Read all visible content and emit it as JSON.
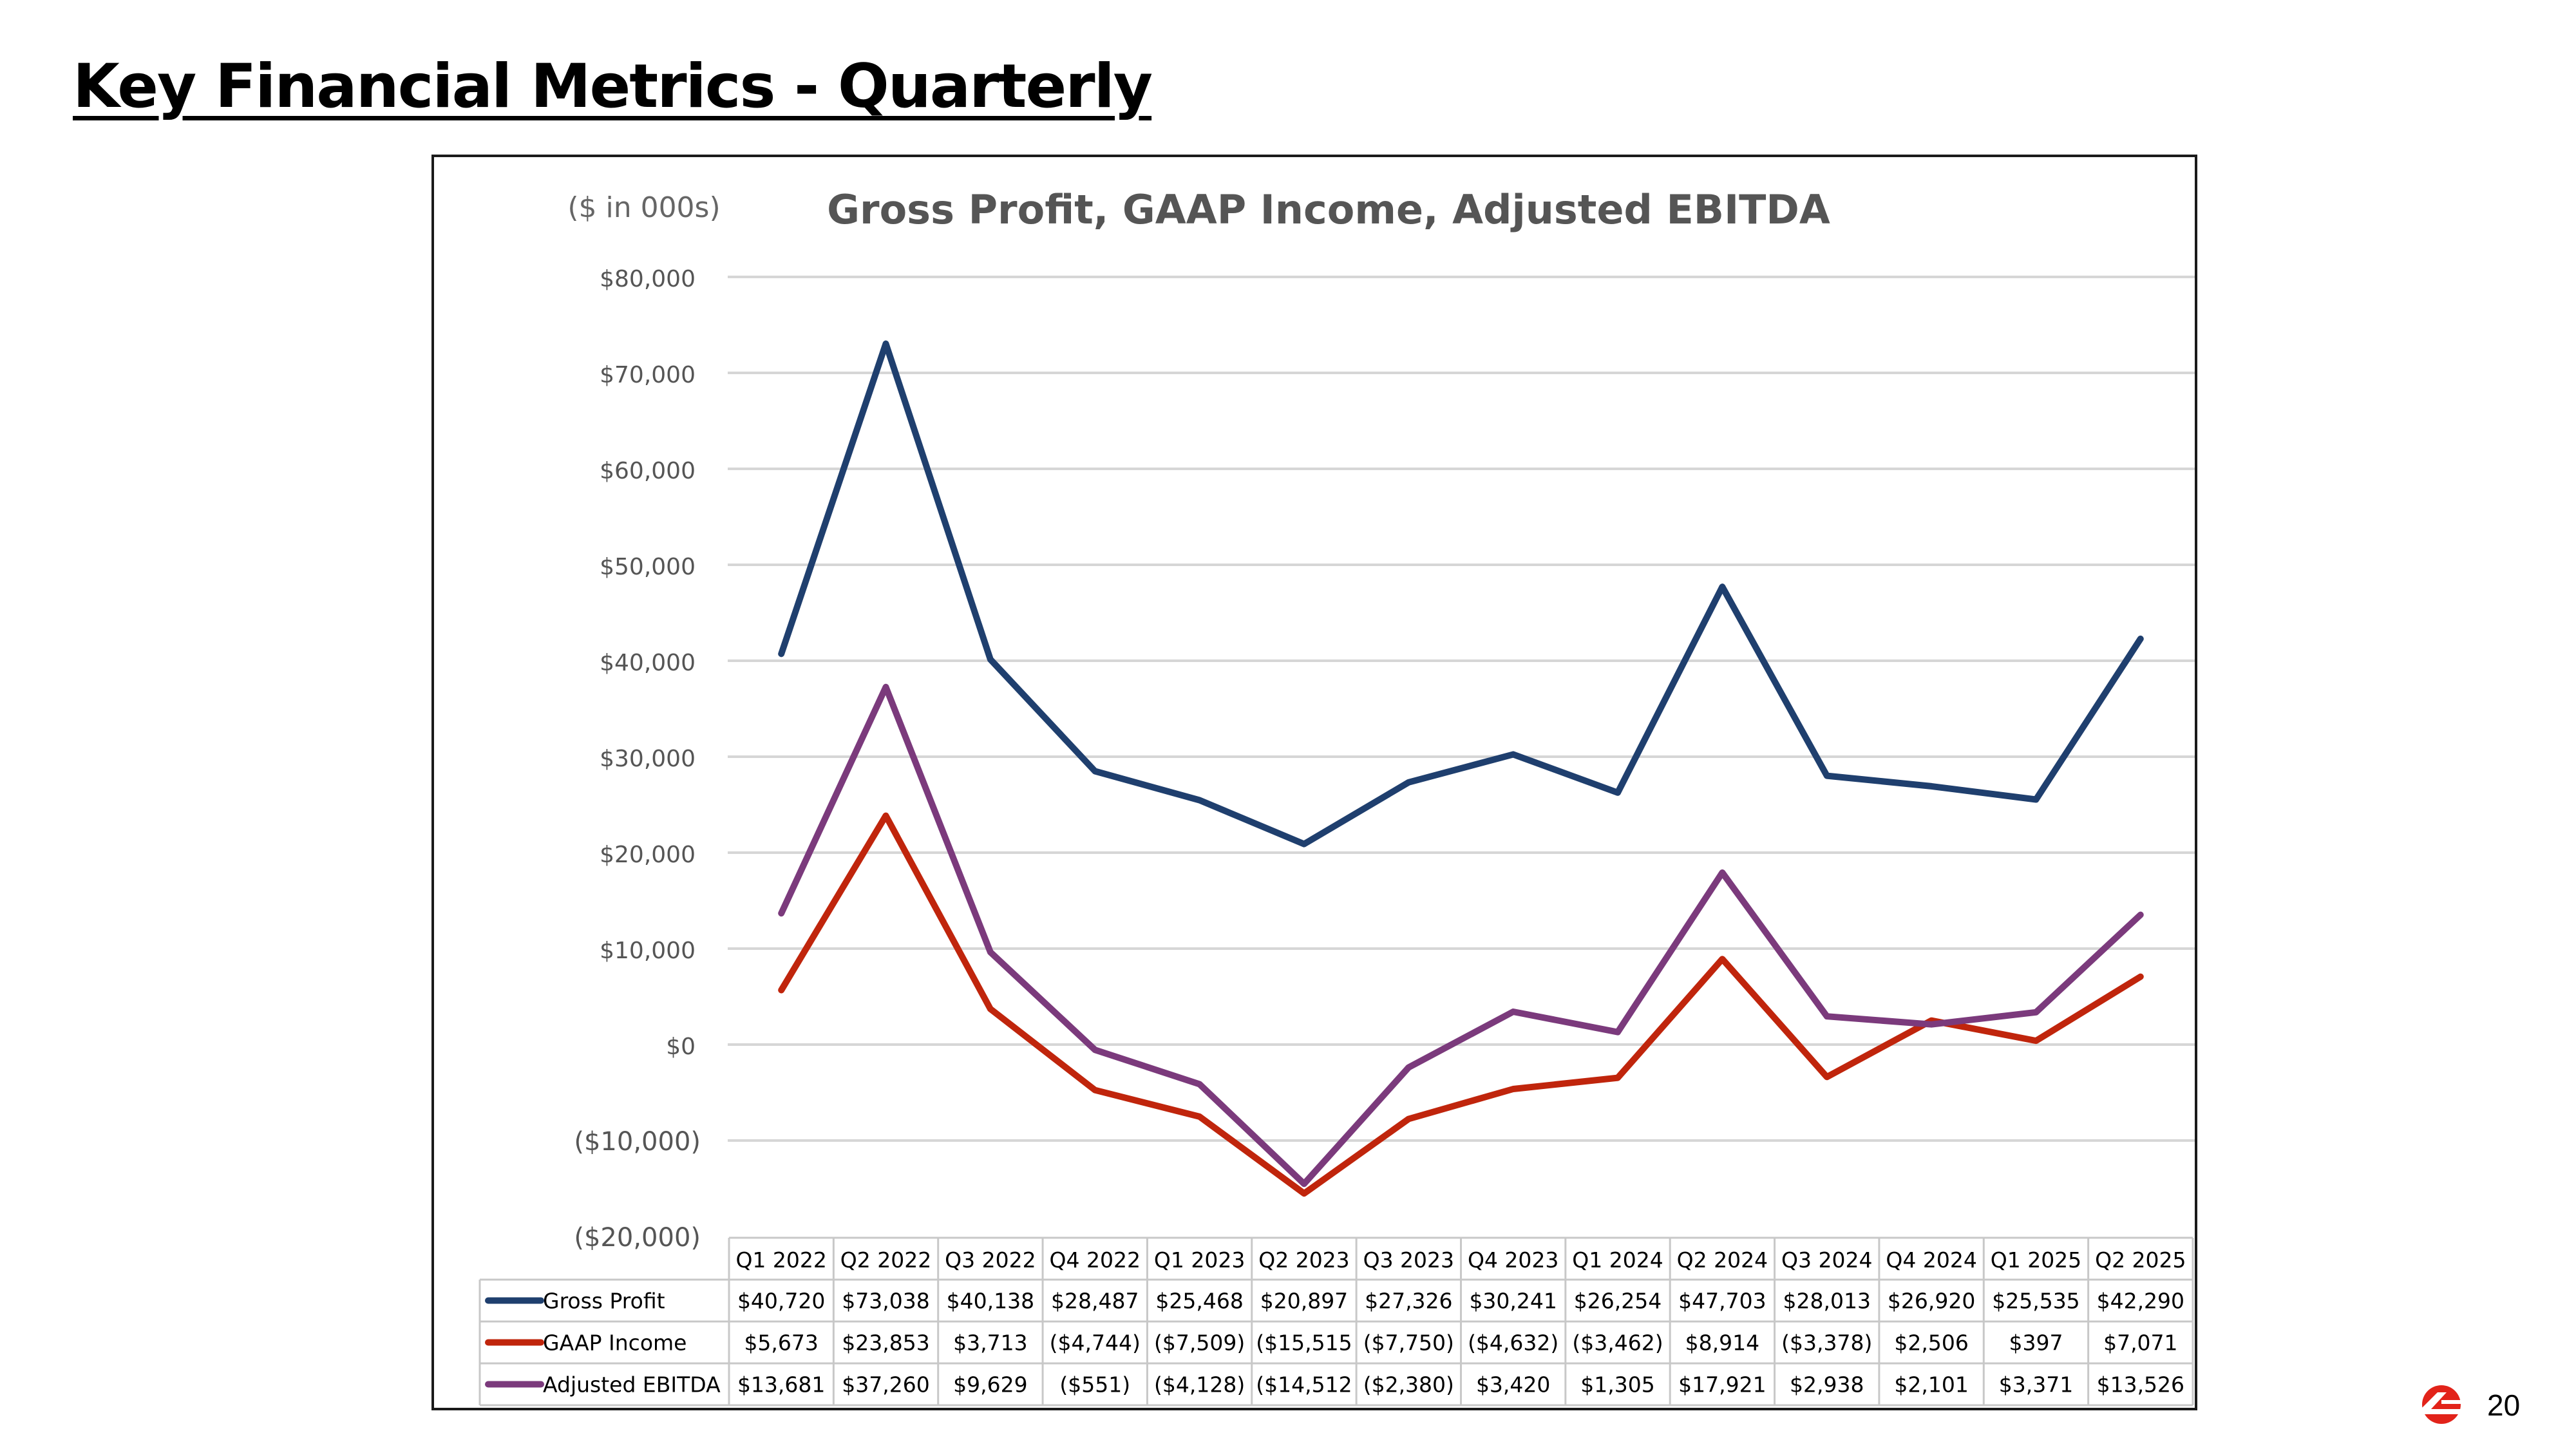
{
  "page": {
    "title": "Key Financial Metrics - Quarterly",
    "page_number": "20"
  },
  "chart_data": {
    "type": "line",
    "title": "Gross Profit, GAAP Income, Adjusted EBITDA",
    "units_label": "($ in 000s)",
    "categories": [
      "Q1 2022",
      "Q2 2022",
      "Q3 2022",
      "Q4 2022",
      "Q1 2023",
      "Q2 2023",
      "Q3 2023",
      "Q4 2023",
      "Q1 2024",
      "Q2 2024",
      "Q3 2024",
      "Q4 2024",
      "Q1 2025",
      "Q2 2025"
    ],
    "ylim": [
      -20000,
      80000
    ],
    "yticks": [
      80000,
      70000,
      60000,
      50000,
      40000,
      30000,
      20000,
      10000,
      0,
      -10000,
      -20000
    ],
    "ytick_labels": [
      "$80,000",
      "$70,000",
      "$60,000",
      "$50,000",
      "$40,000",
      "$30,000",
      "$20,000",
      "$10,000",
      "$0",
      "($10,000)",
      "($20,000)"
    ],
    "grid": true,
    "legend": "data-table",
    "series": [
      {
        "name": "Gross Profit",
        "color": "#1F3F6E",
        "values": [
          40720,
          73038,
          40138,
          28487,
          25468,
          20897,
          27326,
          30241,
          26254,
          47703,
          28013,
          26920,
          25535,
          42290
        ],
        "table_labels": [
          "$40,720",
          "$73,038",
          "$40,138",
          "$28,487",
          "$25,468",
          "$20,897",
          "$27,326",
          "$30,241",
          "$26,254",
          "$47,703",
          "$28,013",
          "$26,920",
          "$25,535",
          "$42,290"
        ]
      },
      {
        "name": "GAAP Income",
        "color": "#C0250C",
        "values": [
          5673,
          23853,
          3713,
          -4744,
          -7509,
          -15515,
          -7750,
          -4632,
          -3462,
          8914,
          -3378,
          2506,
          397,
          7071
        ],
        "table_labels": [
          "$5,673",
          "$23,853",
          "$3,713",
          "($4,744)",
          "($7,509)",
          "($15,515",
          "($7,750)",
          "($4,632)",
          "($3,462)",
          "$8,914",
          "($3,378)",
          "$2,506",
          "$397",
          "$7,071"
        ]
      },
      {
        "name": "Adjusted EBITDA",
        "color": "#7B3A7C",
        "values": [
          13681,
          37260,
          9629,
          -551,
          -4128,
          -14512,
          -2380,
          3420,
          1305,
          17921,
          2938,
          2101,
          3371,
          13526
        ],
        "table_labels": [
          "$13,681",
          "$37,260",
          "$9,629",
          "($551)",
          "($4,128)",
          "($14,512",
          "($2,380)",
          "$3,420",
          "$1,305",
          "$17,921",
          "$2,938",
          "$2,101",
          "$3,371",
          "$13,526"
        ]
      }
    ]
  }
}
